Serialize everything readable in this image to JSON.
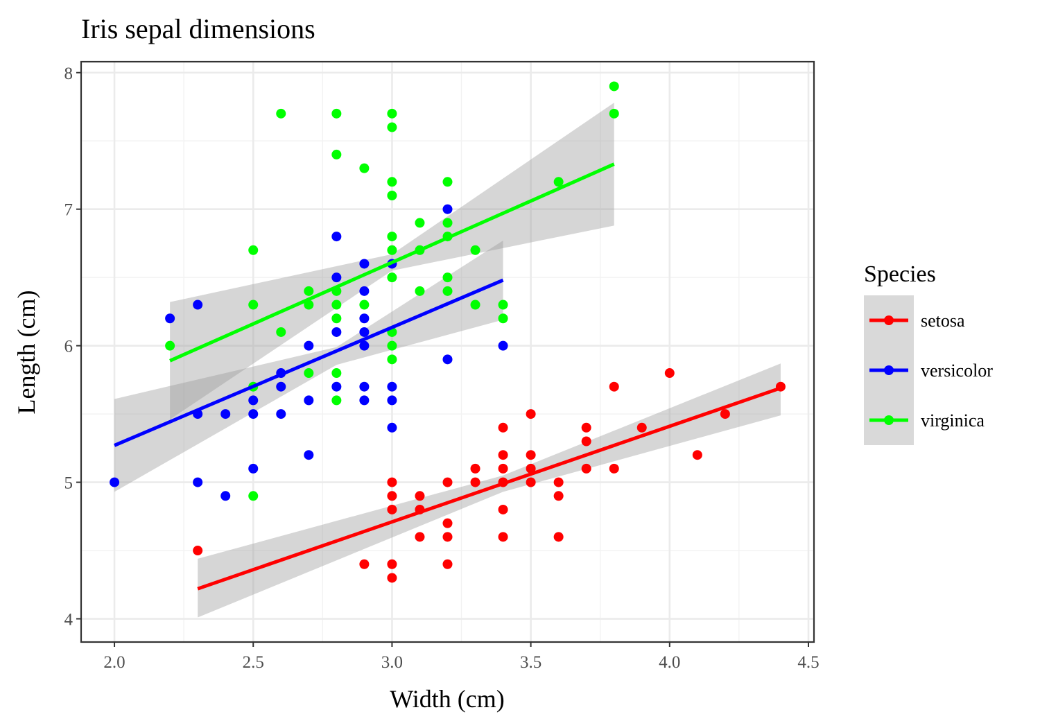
{
  "chart_data": {
    "type": "scatter",
    "title": "Iris sepal dimensions",
    "xlabel": "Width (cm)",
    "ylabel": "Length (cm)",
    "xlim": [
      1.88,
      4.52
    ],
    "ylim": [
      3.83,
      8.08
    ],
    "x_ticks": [
      "2.0",
      "2.5",
      "3.0",
      "3.5",
      "4.0",
      "4.5"
    ],
    "y_ticks": [
      "4",
      "5",
      "6",
      "7",
      "8"
    ],
    "x_tick_values": [
      2.0,
      2.5,
      3.0,
      3.5,
      4.0,
      4.5
    ],
    "y_tick_values": [
      4,
      5,
      6,
      7,
      8
    ],
    "grid": true,
    "legend_title": "Species",
    "legend_position": "right",
    "series": [
      {
        "name": "setosa",
        "color": "#ff0000",
        "points": [
          [
            2.3,
            4.5
          ],
          [
            2.9,
            4.4
          ],
          [
            3.0,
            5.0
          ],
          [
            3.0,
            4.9
          ],
          [
            3.0,
            4.8
          ],
          [
            3.0,
            4.4
          ],
          [
            3.0,
            4.3
          ],
          [
            3.1,
            4.9
          ],
          [
            3.1,
            4.8
          ],
          [
            3.1,
            4.6
          ],
          [
            3.2,
            5.0
          ],
          [
            3.2,
            4.7
          ],
          [
            3.2,
            4.6
          ],
          [
            3.2,
            4.4
          ],
          [
            3.3,
            5.1
          ],
          [
            3.3,
            5.0
          ],
          [
            3.4,
            5.4
          ],
          [
            3.4,
            5.2
          ],
          [
            3.4,
            5.1
          ],
          [
            3.4,
            5.0
          ],
          [
            3.4,
            4.8
          ],
          [
            3.4,
            4.6
          ],
          [
            3.5,
            5.5
          ],
          [
            3.5,
            5.2
          ],
          [
            3.5,
            5.1
          ],
          [
            3.5,
            5.0
          ],
          [
            3.6,
            5.0
          ],
          [
            3.6,
            4.9
          ],
          [
            3.6,
            4.6
          ],
          [
            3.7,
            5.4
          ],
          [
            3.7,
            5.3
          ],
          [
            3.7,
            5.1
          ],
          [
            3.8,
            5.7
          ],
          [
            3.8,
            5.1
          ],
          [
            3.9,
            5.4
          ],
          [
            4.0,
            5.8
          ],
          [
            4.1,
            5.2
          ],
          [
            4.2,
            5.5
          ],
          [
            4.4,
            5.7
          ]
        ],
        "fit_line": [
          [
            2.3,
            4.22
          ],
          [
            4.4,
            5.69
          ]
        ],
        "band_upper": [
          [
            2.3,
            4.44
          ],
          [
            3.4,
            5.05
          ],
          [
            4.4,
            5.87
          ]
        ],
        "band_lower": [
          [
            2.3,
            4.01
          ],
          [
            3.4,
            4.93
          ],
          [
            4.4,
            5.49
          ]
        ]
      },
      {
        "name": "versicolor",
        "color": "#0000ff",
        "points": [
          [
            2.0,
            5.0
          ],
          [
            2.2,
            6.2
          ],
          [
            2.3,
            6.3
          ],
          [
            2.3,
            5.5
          ],
          [
            2.3,
            5.0
          ],
          [
            2.4,
            5.5
          ],
          [
            2.4,
            4.9
          ],
          [
            2.5,
            5.6
          ],
          [
            2.5,
            5.5
          ],
          [
            2.5,
            5.1
          ],
          [
            2.6,
            5.8
          ],
          [
            2.6,
            5.7
          ],
          [
            2.6,
            5.5
          ],
          [
            2.7,
            6.0
          ],
          [
            2.7,
            5.6
          ],
          [
            2.7,
            5.2
          ],
          [
            2.8,
            6.8
          ],
          [
            2.8,
            6.5
          ],
          [
            2.8,
            6.1
          ],
          [
            2.8,
            5.7
          ],
          [
            2.9,
            6.6
          ],
          [
            2.9,
            6.4
          ],
          [
            2.9,
            6.2
          ],
          [
            2.9,
            6.1
          ],
          [
            2.9,
            6.0
          ],
          [
            2.9,
            5.7
          ],
          [
            2.9,
            5.6
          ],
          [
            3.0,
            6.6
          ],
          [
            3.0,
            5.7
          ],
          [
            3.0,
            5.6
          ],
          [
            3.0,
            5.4
          ],
          [
            3.2,
            7.0
          ],
          [
            3.2,
            5.9
          ],
          [
            3.4,
            6.0
          ]
        ],
        "fit_line": [
          [
            2.0,
            5.27
          ],
          [
            3.4,
            6.48
          ]
        ],
        "band_upper": [
          [
            2.0,
            5.61
          ],
          [
            2.8,
            5.99
          ],
          [
            3.4,
            6.77
          ]
        ],
        "band_lower": [
          [
            2.0,
            4.93
          ],
          [
            2.8,
            5.86
          ],
          [
            3.4,
            6.19
          ]
        ]
      },
      {
        "name": "virginica",
        "color": "#00ff00",
        "points": [
          [
            2.2,
            6.0
          ],
          [
            2.5,
            6.7
          ],
          [
            2.5,
            6.3
          ],
          [
            2.5,
            5.7
          ],
          [
            2.5,
            4.9
          ],
          [
            2.6,
            7.7
          ],
          [
            2.6,
            6.1
          ],
          [
            2.7,
            6.4
          ],
          [
            2.7,
            6.3
          ],
          [
            2.7,
            5.8
          ],
          [
            2.8,
            7.7
          ],
          [
            2.8,
            7.4
          ],
          [
            2.8,
            6.4
          ],
          [
            2.8,
            6.3
          ],
          [
            2.8,
            6.2
          ],
          [
            2.8,
            5.8
          ],
          [
            2.8,
            5.6
          ],
          [
            2.9,
            7.3
          ],
          [
            2.9,
            6.3
          ],
          [
            3.0,
            7.7
          ],
          [
            3.0,
            7.6
          ],
          [
            3.0,
            7.2
          ],
          [
            3.0,
            7.1
          ],
          [
            3.0,
            6.8
          ],
          [
            3.0,
            6.7
          ],
          [
            3.0,
            6.5
          ],
          [
            3.0,
            6.1
          ],
          [
            3.0,
            6.0
          ],
          [
            3.0,
            5.9
          ],
          [
            3.1,
            6.9
          ],
          [
            3.1,
            6.7
          ],
          [
            3.1,
            6.4
          ],
          [
            3.2,
            7.2
          ],
          [
            3.2,
            6.9
          ],
          [
            3.2,
            6.8
          ],
          [
            3.2,
            6.5
          ],
          [
            3.2,
            6.4
          ],
          [
            3.3,
            6.7
          ],
          [
            3.3,
            6.3
          ],
          [
            3.4,
            6.3
          ],
          [
            3.4,
            6.2
          ],
          [
            3.6,
            7.2
          ],
          [
            3.8,
            7.9
          ],
          [
            3.8,
            7.7
          ]
        ],
        "fit_line": [
          [
            2.2,
            5.89
          ],
          [
            3.8,
            7.33
          ]
        ],
        "band_upper": [
          [
            2.2,
            6.32
          ],
          [
            3.0,
            6.67
          ],
          [
            3.8,
            7.78
          ]
        ],
        "band_lower": [
          [
            2.2,
            5.46
          ],
          [
            3.0,
            6.55
          ],
          [
            3.8,
            6.88
          ]
        ]
      }
    ]
  }
}
